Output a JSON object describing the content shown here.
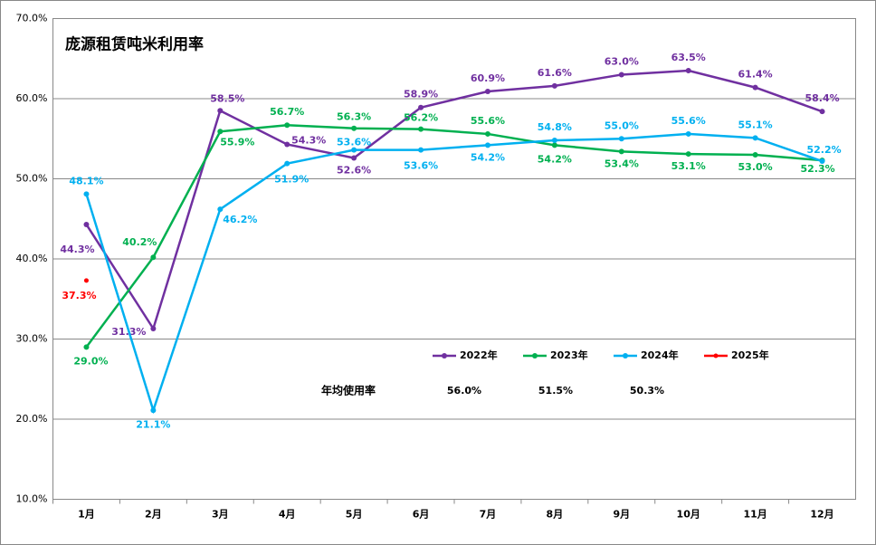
{
  "chart_data": {
    "type": "line",
    "title": "庞源租赁吨米利用率",
    "categories": [
      "1月",
      "2月",
      "3月",
      "4月",
      "5月",
      "6月",
      "7月",
      "8月",
      "9月",
      "10月",
      "11月",
      "12月"
    ],
    "series": [
      {
        "name": "2022年",
        "color": "#7030a0",
        "values": [
          44.3,
          31.3,
          58.5,
          54.3,
          52.6,
          58.9,
          60.9,
          61.6,
          63.0,
          63.5,
          61.4,
          58.4
        ],
        "value_labels": [
          "44.3%",
          "31.3%",
          "58.5%",
          "54.3%",
          "52.6%",
          "58.9%",
          "60.9%",
          "61.6%",
          "63.0%",
          "63.5%",
          "61.4%",
          "58.4%"
        ]
      },
      {
        "name": "2023年",
        "color": "#00b050",
        "values": [
          29.0,
          40.2,
          55.9,
          56.7,
          56.3,
          56.2,
          55.6,
          54.2,
          53.4,
          53.1,
          53.0,
          52.3
        ],
        "value_labels": [
          "29.0%",
          "40.2%",
          "55.9%",
          "56.7%",
          "56.3%",
          "56.2%",
          "55.6%",
          "54.2%",
          "53.4%",
          "53.1%",
          "53.0%",
          "52.3%"
        ]
      },
      {
        "name": "2024年",
        "color": "#00b0f0",
        "values": [
          48.1,
          21.1,
          46.2,
          51.9,
          53.6,
          53.6,
          54.2,
          54.8,
          55.0,
          55.6,
          55.1,
          52.2
        ],
        "value_labels": [
          "48.1%",
          "21.1%",
          "46.2%",
          "51.9%",
          "53.6%",
          "53.6%",
          "54.2%",
          "54.8%",
          "55.0%",
          "55.6%",
          "55.1%",
          "52.2%"
        ]
      },
      {
        "name": "2025年",
        "color": "#ff0000",
        "values": [
          37.3,
          null,
          null,
          null,
          null,
          null,
          null,
          null,
          null,
          null,
          null,
          null
        ],
        "value_labels": [
          "37.3%",
          null,
          null,
          null,
          null,
          null,
          null,
          null,
          null,
          null,
          null,
          null
        ]
      }
    ],
    "ylim": [
      10,
      70
    ],
    "yticks": [
      {
        "value": 10,
        "label": "10.0%"
      },
      {
        "value": 20,
        "label": "20.0%"
      },
      {
        "value": 30,
        "label": "30.0%"
      },
      {
        "value": 40,
        "label": "40.0%"
      },
      {
        "value": 50,
        "label": "50.0%"
      },
      {
        "value": 60,
        "label": "60.0%"
      },
      {
        "value": 70,
        "label": "70.0%"
      }
    ],
    "grid": true,
    "annual_average": {
      "label": "年均使用率",
      "values": [
        56.0,
        51.5,
        50.3
      ],
      "value_labels": [
        "56.0%",
        "51.5%",
        "50.3%"
      ]
    }
  }
}
